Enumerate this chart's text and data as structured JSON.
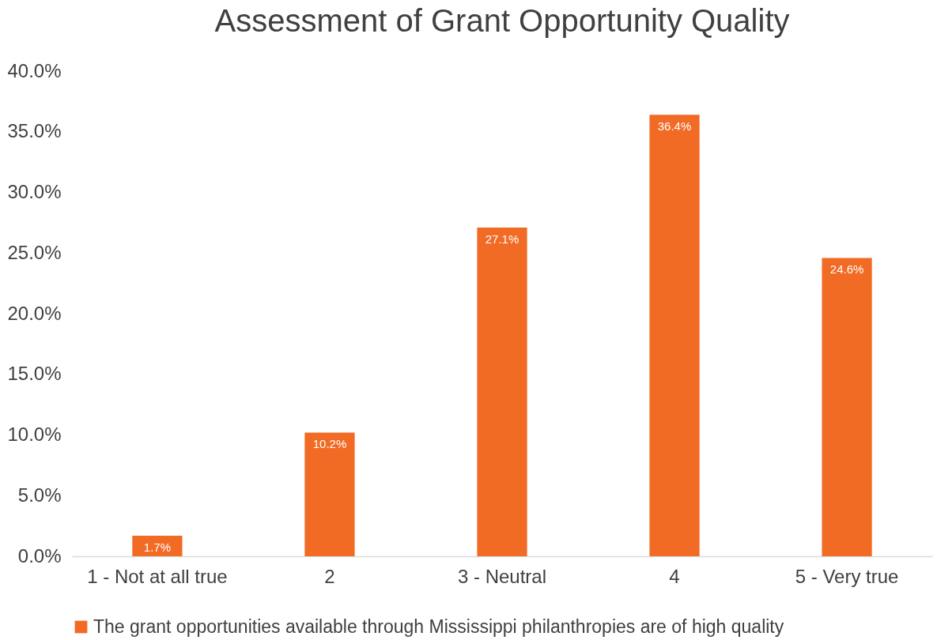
{
  "chart_data": {
    "type": "bar",
    "title": "Assessment of Grant Opportunity Quality",
    "categories": [
      "1 - Not at all true",
      "2",
      "3 - Neutral",
      "4",
      "5 - Very true"
    ],
    "series": [
      {
        "name": "The grant opportunities available through Mississippi philanthropies are of high quality",
        "color": "#f26b25",
        "values": [
          1.7,
          10.2,
          27.1,
          36.4,
          24.6
        ],
        "value_labels": [
          "1.7%",
          "10.2%",
          "27.1%",
          "36.4%",
          "24.6%"
        ]
      }
    ],
    "ylim": [
      0,
      40
    ],
    "yticks": [
      {
        "value": 0,
        "label": "0.0%"
      },
      {
        "value": 5,
        "label": "5.0%"
      },
      {
        "value": 10,
        "label": "10.0%"
      },
      {
        "value": 15,
        "label": "15.0%"
      },
      {
        "value": 20,
        "label": "20.0%"
      },
      {
        "value": 25,
        "label": "25.0%"
      },
      {
        "value": 30,
        "label": "30.0%"
      },
      {
        "value": 35,
        "label": "35.0%"
      },
      {
        "value": 40,
        "label": "40.0%"
      }
    ],
    "grid": false,
    "legend": "bottom"
  }
}
